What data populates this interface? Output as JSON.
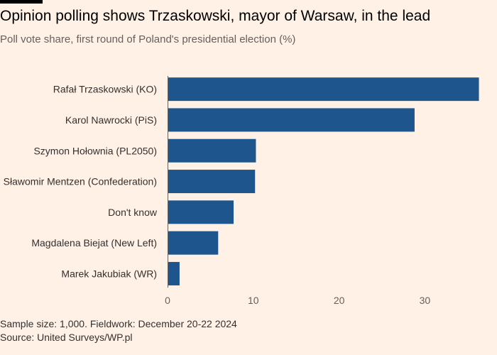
{
  "header": {
    "title": "Opinion polling shows Trzaskowski, mayor of Warsaw, in the lead",
    "subtitle": "Poll vote share, first round of Poland's presidential election (%)"
  },
  "footer": {
    "note": "Sample size: 1,000. Fieldwork: December 20-22 2024",
    "source": "Source: United Surveys/WP.pl"
  },
  "colors": {
    "bar": "#1e558c",
    "axis": "#66605c",
    "background": "#fff1e5"
  },
  "chart_data": {
    "type": "bar",
    "orientation": "horizontal",
    "title": "Opinion polling shows Trzaskowski, mayor of Warsaw, in the lead",
    "subtitle": "Poll vote share, first round of Poland's presidential election (%)",
    "categories": [
      "Rafał Trzaskowski (KO)",
      "Karol Nawrocki (PiS)",
      "Szymon Hołownia (PL2050)",
      "Sławomir Mentzen (Confederation)",
      "Don't know",
      "Magdalena Biejat (New Left)",
      "Marek Jakubiak (WR)"
    ],
    "values": [
      36.3,
      28.8,
      10.3,
      10.2,
      7.7,
      5.9,
      1.4
    ],
    "xlim": [
      0,
      37
    ],
    "xticks": [
      0,
      10,
      20,
      30
    ],
    "xlabel": "",
    "ylabel": "",
    "grid": false
  }
}
